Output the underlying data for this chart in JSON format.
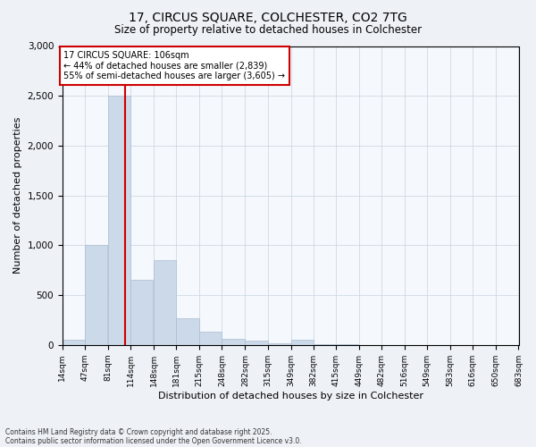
{
  "title1": "17, CIRCUS SQUARE, COLCHESTER, CO2 7TG",
  "title2": "Size of property relative to detached houses in Colchester",
  "xlabel": "Distribution of detached houses by size in Colchester",
  "ylabel": "Number of detached properties",
  "property_size": 106,
  "annotation_title": "17 CIRCUS SQUARE: 106sqm",
  "annotation_line1": "← 44% of detached houses are smaller (2,839)",
  "annotation_line2": "55% of semi-detached houses are larger (3,605) →",
  "footnote1": "Contains HM Land Registry data © Crown copyright and database right 2025.",
  "footnote2": "Contains public sector information licensed under the Open Government Licence v3.0.",
  "bar_color": "#ccd9e8",
  "bar_edge_color": "#aabdd4",
  "vline_color": "#cc0000",
  "annotation_box_color": "#cc0000",
  "bins": [
    14,
    47,
    81,
    114,
    148,
    181,
    215,
    248,
    282,
    315,
    349,
    382,
    415,
    449,
    482,
    516,
    549,
    583,
    616,
    650,
    683
  ],
  "values": [
    50,
    1000,
    2500,
    650,
    850,
    270,
    130,
    60,
    40,
    20,
    50,
    10,
    5,
    0,
    0,
    0,
    0,
    0,
    0,
    0
  ],
  "ylim": [
    0,
    3000
  ],
  "yticks": [
    0,
    500,
    1000,
    1500,
    2000,
    2500,
    3000
  ],
  "bg_color": "#eef2f7",
  "plot_bg_color": "#f5f8fc",
  "grid_color": "#c8d4e0"
}
